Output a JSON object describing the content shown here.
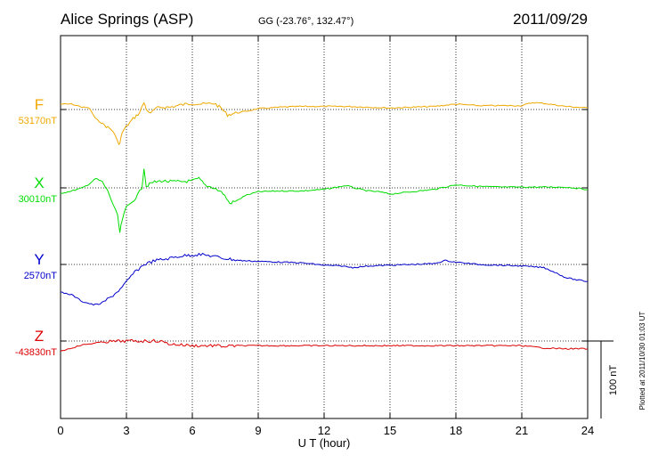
{
  "header": {
    "station": "Alice Springs (ASP)",
    "coords": "GG (-23.76°, 132.47°)",
    "date": "2011/09/29"
  },
  "scale_label": "100 nT",
  "plotted_note": "Plotted at 2011/10/30 01:03 UT",
  "colors": {
    "F": "#f0a800",
    "X": "#00dd00",
    "Y": "#0000cc",
    "Z": "#dd0000"
  },
  "chart_data": {
    "type": "line",
    "title": "Alice Springs (ASP)",
    "xlabel": "U T (hour)",
    "ylabel": "",
    "xlim": [
      0,
      24
    ],
    "xticks": [
      "0",
      "3",
      "6",
      "9",
      "12",
      "15",
      "18",
      "21",
      "24"
    ],
    "grid": true,
    "scale_bar_nT": 100,
    "series": [
      {
        "name": "F",
        "baseline_label": "53170nT",
        "baseline": 53170,
        "points": [
          [
            0,
            53177
          ],
          [
            0.5,
            53177
          ],
          [
            1.0,
            53173
          ],
          [
            1.3,
            53172
          ],
          [
            1.6,
            53158
          ],
          [
            2.0,
            53150
          ],
          [
            2.4,
            53142
          ],
          [
            2.6,
            53128
          ],
          [
            2.7,
            53126
          ],
          [
            2.8,
            53140
          ],
          [
            3.0,
            53148
          ],
          [
            3.3,
            53158
          ],
          [
            3.6,
            53166
          ],
          [
            3.8,
            53179
          ],
          [
            3.9,
            53171
          ],
          [
            4.1,
            53164
          ],
          [
            4.3,
            53171
          ],
          [
            4.6,
            53173
          ],
          [
            5.0,
            53173
          ],
          [
            5.5,
            53176
          ],
          [
            6.0,
            53178
          ],
          [
            6.5,
            53177
          ],
          [
            7.0,
            53178
          ],
          [
            7.3,
            53172
          ],
          [
            7.6,
            53163
          ],
          [
            7.9,
            53165
          ],
          [
            8.3,
            53167
          ],
          [
            9.0,
            53171
          ],
          [
            10,
            53173
          ],
          [
            11,
            53174
          ],
          [
            12,
            53174
          ],
          [
            13,
            53174
          ],
          [
            14,
            53173
          ],
          [
            15,
            53172
          ],
          [
            16,
            53173
          ],
          [
            17,
            53174
          ],
          [
            18,
            53177
          ],
          [
            19,
            53175
          ],
          [
            20,
            53175
          ],
          [
            21,
            53175
          ],
          [
            21.5,
            53179
          ],
          [
            22,
            53178
          ],
          [
            23,
            53174
          ],
          [
            24,
            53172
          ]
        ]
      },
      {
        "name": "X",
        "baseline_label": "30010nT",
        "baseline": 30010,
        "points": [
          [
            0,
            30003
          ],
          [
            0.5,
            30006
          ],
          [
            1.0,
            30010
          ],
          [
            1.3,
            30015
          ],
          [
            1.6,
            30022
          ],
          [
            1.9,
            30018
          ],
          [
            2.2,
            30003
          ],
          [
            2.4,
            29988
          ],
          [
            2.6,
            29973
          ],
          [
            2.7,
            29952
          ],
          [
            2.8,
            29968
          ],
          [
            3.0,
            29985
          ],
          [
            3.2,
            29990
          ],
          [
            3.5,
            30000
          ],
          [
            3.7,
            30010
          ],
          [
            3.8,
            30036
          ],
          [
            3.9,
            30012
          ],
          [
            4.2,
            30017
          ],
          [
            4.6,
            30019
          ],
          [
            5.0,
            30018
          ],
          [
            5.5,
            30018
          ],
          [
            6.0,
            30019
          ],
          [
            6.3,
            30022
          ],
          [
            6.6,
            30013
          ],
          [
            7.0,
            30010
          ],
          [
            7.4,
            30003
          ],
          [
            7.7,
            29990
          ],
          [
            8.0,
            29993
          ],
          [
            8.4,
            30000
          ],
          [
            9.0,
            30005
          ],
          [
            10,
            30006
          ],
          [
            11,
            30006
          ],
          [
            12,
            30008
          ],
          [
            13,
            30013
          ],
          [
            13.5,
            30009
          ],
          [
            14,
            30006
          ],
          [
            14.5,
            30005
          ],
          [
            15,
            30002
          ],
          [
            16,
            30005
          ],
          [
            17,
            30008
          ],
          [
            18,
            30014
          ],
          [
            19,
            30012
          ],
          [
            20,
            30011
          ],
          [
            21,
            30011
          ],
          [
            22,
            30011
          ],
          [
            23,
            30011
          ],
          [
            24,
            30008
          ]
        ]
      },
      {
        "name": "Y",
        "baseline_label": "2570nT",
        "baseline": 2570,
        "points": [
          [
            0,
            2534
          ],
          [
            0.5,
            2531
          ],
          [
            1.0,
            2522
          ],
          [
            1.5,
            2518
          ],
          [
            1.8,
            2519
          ],
          [
            2.3,
            2528
          ],
          [
            2.8,
            2540
          ],
          [
            3.3,
            2558
          ],
          [
            3.8,
            2570
          ],
          [
            4.3,
            2575
          ],
          [
            4.8,
            2577
          ],
          [
            5.5,
            2581
          ],
          [
            6.3,
            2583
          ],
          [
            6.9,
            2581
          ],
          [
            7.4,
            2578
          ],
          [
            8.2,
            2575
          ],
          [
            9.0,
            2574
          ],
          [
            10,
            2573
          ],
          [
            11,
            2572
          ],
          [
            12,
            2569
          ],
          [
            12.8,
            2568
          ],
          [
            13.3,
            2566
          ],
          [
            14,
            2568
          ],
          [
            15,
            2569
          ],
          [
            16,
            2570
          ],
          [
            17,
            2571
          ],
          [
            17.5,
            2575
          ],
          [
            18,
            2573
          ],
          [
            19,
            2570
          ],
          [
            20,
            2569
          ],
          [
            21,
            2568
          ],
          [
            22,
            2566
          ],
          [
            22.5,
            2560
          ],
          [
            23,
            2553
          ],
          [
            23.5,
            2550
          ],
          [
            24,
            2548
          ]
        ]
      },
      {
        "name": "Z",
        "baseline_label": "-43830nT",
        "baseline": -43830,
        "points": [
          [
            0,
            -43843
          ],
          [
            0.5,
            -43839
          ],
          [
            1.0,
            -43835
          ],
          [
            2.0,
            -43831
          ],
          [
            3.0,
            -43830
          ],
          [
            4.0,
            -43830
          ],
          [
            4.5,
            -43830
          ],
          [
            5.0,
            -43834
          ],
          [
            6.0,
            -43836
          ],
          [
            7.0,
            -43836
          ],
          [
            7.5,
            -43837
          ],
          [
            8.0,
            -43836
          ],
          [
            9,
            -43836
          ],
          [
            10,
            -43836
          ],
          [
            12,
            -43836
          ],
          [
            14,
            -43836
          ],
          [
            16,
            -43836
          ],
          [
            18,
            -43836
          ],
          [
            19,
            -43836
          ],
          [
            20,
            -43836
          ],
          [
            21,
            -43836
          ],
          [
            22,
            -43839
          ],
          [
            23,
            -43840
          ],
          [
            24,
            -43840
          ]
        ]
      }
    ]
  }
}
